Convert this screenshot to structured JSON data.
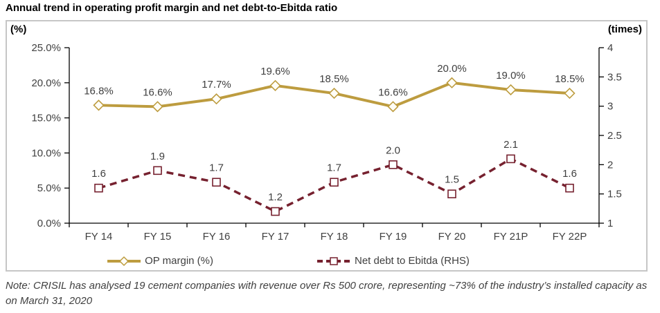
{
  "title": "Annual trend in operating profit margin and net debt-to-Ebitda ratio",
  "note": "Note: CRISIL has analysed 19 cement companies with revenue over Rs 500 crore, representing ~73% of the industry’s installed capacity as on March 31, 2020",
  "colors": {
    "op_margin": "#BD9C3F",
    "net_debt": "#76212F",
    "data_label": "#3F3F3F",
    "tick_label": "#404040",
    "axis_line": "#000000",
    "frame_border": "#C6C6C6",
    "marker_fill": "#FFFEF7"
  },
  "chart_data": {
    "type": "line",
    "categories": [
      "FY 14",
      "FY 15",
      "FY 16",
      "FY 17",
      "FY 18",
      "FY 19",
      "FY 20",
      "FY 21P",
      "FY 22P"
    ],
    "series": [
      {
        "name": "OP margin (%)",
        "axis": "left",
        "values": [
          16.8,
          16.6,
          17.7,
          19.6,
          18.5,
          16.6,
          20.0,
          19.0,
          18.5
        ],
        "labels": [
          "16.8%",
          "16.6%",
          "17.7%",
          "19.6%",
          "18.5%",
          "16.6%",
          "20.0%",
          "19.0%",
          "18.5%"
        ],
        "color": "#BD9C3F",
        "marker": "diamond",
        "line_style": "solid"
      },
      {
        "name": "Net debt to Ebitda (RHS)",
        "axis": "right",
        "values": [
          1.6,
          1.9,
          1.7,
          1.2,
          1.7,
          2.0,
          1.5,
          2.1,
          1.6
        ],
        "labels": [
          "1.6",
          "1.9",
          "1.7",
          "1.2",
          "1.7",
          "2.0",
          "1.5",
          "2.1",
          "1.6"
        ],
        "color": "#76212F",
        "marker": "square",
        "line_style": "dashed"
      }
    ],
    "left_axis": {
      "label": "(%)",
      "min": 0,
      "max": 25,
      "ticks": [
        "25.0%",
        "20.0%",
        "15.0%",
        "10.0%",
        "5.0%",
        "0.0%"
      ]
    },
    "right_axis": {
      "label": "(times)",
      "min": 1,
      "max": 4,
      "ticks": [
        "4",
        "3.5",
        "3",
        "2.5",
        "2",
        "1.5",
        "1"
      ]
    },
    "legend_position": "bottom",
    "grid": false
  }
}
